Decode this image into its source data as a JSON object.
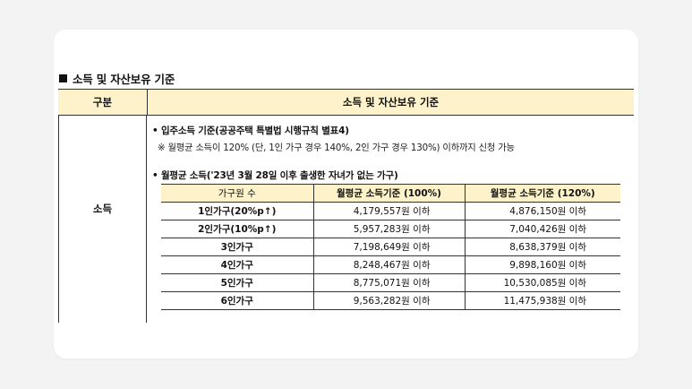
{
  "section_title": "소득 및 자산보유 기준",
  "outer_table": {
    "col1_header": "구분",
    "col2_header": "소득 및 자산보유 기준",
    "row_label": "소득"
  },
  "bullet1": "입주소득 기준(공공주택 특별법 시행규칙 별표4)",
  "note1": "※ 월평균 소득이 120% (단, 1인 가구 경우 140%, 2인 가구 경우 130%) 이하까지 신청 가능",
  "bullet2": "월평균 소득('23년 3월 28일 이후 출생한 자녀가 없는 가구)",
  "income_table": {
    "headers": [
      "가구원 수",
      "월평균 소득기준 (100%)",
      "월평균 소득기준 (120%)"
    ],
    "rows": [
      {
        "group": "1인가구(20%p↑)",
        "v100": "4,179,557원 이하",
        "v120": "4,876,150원 이하"
      },
      {
        "group": "2인가구(10%p↑)",
        "v100": "5,957,283원 이하",
        "v120": "7,040,426원 이하"
      },
      {
        "group": "3인가구",
        "v100": "7,198,649원 이하",
        "v120": "8,638,379원 이하"
      },
      {
        "group": "4인가구",
        "v100": "8,248,467원 이하",
        "v120": "9,898,160원 이하"
      },
      {
        "group": "5인가구",
        "v100": "8,775,071원 이하",
        "v120": "10,530,085원 이하"
      },
      {
        "group": "6인가구",
        "v100": "9,563,282원 이하",
        "v120": "11,475,938원 이하"
      }
    ]
  }
}
